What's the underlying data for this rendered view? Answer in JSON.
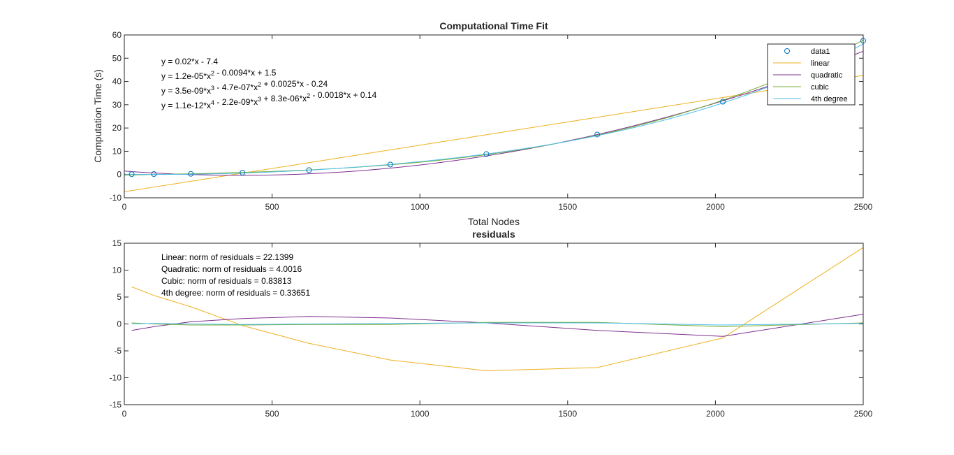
{
  "colors": {
    "data1": "#0072BD",
    "linear": "#EDB120",
    "quadratic": "#7E2F8E",
    "cubic": "#77AC30",
    "quartic": "#4DBEEE",
    "axis": "#262626"
  },
  "chart_data": [
    {
      "type": "line",
      "title": "Computational Time Fit",
      "xlabel": "Total Nodes",
      "ylabel": "Computation Time (s)",
      "xlim": [
        0,
        2500
      ],
      "ylim": [
        -10,
        60
      ],
      "xticks": [
        0,
        500,
        1000,
        1500,
        2000,
        2500
      ],
      "yticks": [
        -10,
        0,
        10,
        20,
        30,
        40,
        50,
        60
      ],
      "grid": false,
      "legend_position": "top-right",
      "legend": [
        "data1",
        "linear",
        "quadratic",
        "cubic",
        "4th degree"
      ],
      "annotations": [
        {
          "parts": [
            [
              "y = 0.02*x - 7.4",
              null
            ]
          ]
        },
        {
          "parts": [
            [
              "y = 1.2e-05*x",
              "2"
            ],
            [
              " - 0.0094*x + 1.5",
              null
            ]
          ]
        },
        {
          "parts": [
            [
              "y = 3.5e-09*x",
              "3"
            ],
            [
              " - 4.7e-07*x",
              "2"
            ],
            [
              " + 0.0025*x - 0.24",
              null
            ]
          ]
        },
        {
          "parts": [
            [
              "y = 1.1e-12*x",
              "4"
            ],
            [
              " - 2.2e-09*x",
              "3"
            ],
            [
              " + 8.3e-06*x",
              "2"
            ],
            [
              " - 0.0018*x + 0.14",
              null
            ]
          ]
        }
      ],
      "data1": {
        "x": [
          25,
          100,
          225,
          400,
          625,
          900,
          1225,
          1600,
          2025,
          2500
        ],
        "y": [
          0.15,
          0.2,
          0.3,
          0.8,
          1.9,
          4.3,
          8.8,
          17.2,
          31.3,
          57.5
        ]
      },
      "fits": [
        {
          "name": "linear",
          "coeffs": [
            -7.4,
            0.02
          ]
        },
        {
          "name": "quadratic",
          "coeffs": [
            1.5,
            -0.0094,
            1.2e-05
          ]
        },
        {
          "name": "cubic",
          "coeffs": [
            -0.24,
            0.0025,
            -4.7e-07,
            3.5e-09
          ]
        },
        {
          "name": "4th degree",
          "coeffs": [
            0.14,
            -0.0018,
            8.3e-06,
            -2.2e-09,
            1.1e-12
          ]
        }
      ]
    },
    {
      "type": "line",
      "title": "residuals",
      "xlim": [
        0,
        2500
      ],
      "ylim": [
        -15,
        15
      ],
      "xticks": [
        0,
        500,
        1000,
        1500,
        2000,
        2500
      ],
      "yticks": [
        -15,
        -10,
        -5,
        0,
        5,
        10,
        15
      ],
      "grid": false,
      "annotations": [
        "Linear: norm of residuals = 22.1399",
        "Quadratic: norm of residuals = 4.0016",
        "Cubic: norm of residuals = 0.83813",
        "4th degree: norm of residuals = 0.33651"
      ],
      "x": [
        25,
        100,
        225,
        400,
        625,
        900,
        1225,
        1600,
        2025,
        2500
      ],
      "series": [
        {
          "name": "linear",
          "values": [
            6.9,
            5.3,
            3.2,
            -0.3,
            -3.6,
            -6.7,
            -8.7,
            -8.1,
            -2.6,
            14.2
          ]
        },
        {
          "name": "quadratic",
          "values": [
            -1.2,
            -0.5,
            0.4,
            1.0,
            1.4,
            1.1,
            0.2,
            -1.2,
            -2.3,
            1.8
          ]
        },
        {
          "name": "cubic",
          "values": [
            0.2,
            0.0,
            -0.2,
            -0.2,
            -0.1,
            -0.1,
            0.3,
            0.3,
            -0.5,
            0.2
          ]
        },
        {
          "name": "4th degree",
          "values": [
            0.0,
            0.1,
            0.0,
            -0.1,
            0.0,
            0.1,
            0.2,
            0.2,
            -0.2,
            0.1
          ]
        }
      ]
    }
  ]
}
